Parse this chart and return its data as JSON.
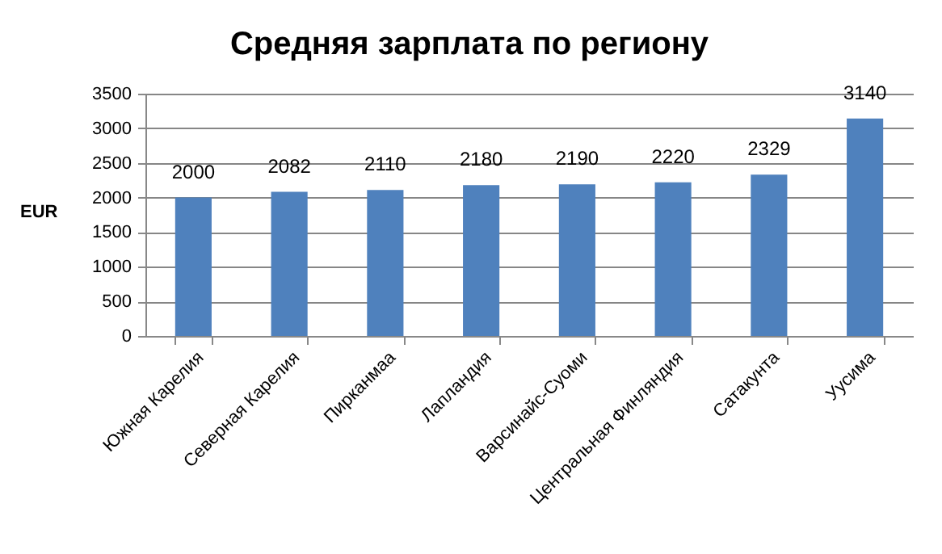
{
  "chart_data": {
    "type": "bar",
    "title": "Средняя зарплата по региону",
    "ylabel": "EUR",
    "categories": [
      "Южная Карелия",
      "Северная Карелия",
      "Пирканмаа",
      "Лапландия",
      "Варсинайс-Суоми",
      "Центральная Финляндия",
      "Сатакунта",
      "Уусима"
    ],
    "values": [
      2000,
      2082,
      2110,
      2180,
      2190,
      2220,
      2329,
      3140
    ],
    "color": "#4f81bd",
    "ylim": [
      0,
      3500
    ],
    "yticks": [
      0,
      500,
      1000,
      1500,
      2000,
      2500,
      3000,
      3500
    ],
    "grid": "y",
    "data_labels": true
  }
}
